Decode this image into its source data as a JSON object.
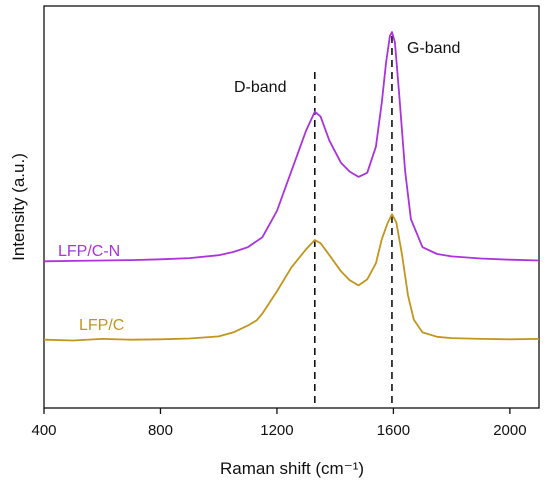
{
  "chart_data": {
    "type": "line",
    "title": "",
    "xlabel": "Raman shift (cm⁻¹)",
    "ylabel": "Intensity (a.u.)",
    "xlim": [
      400,
      2100
    ],
    "ylim": [
      0,
      1
    ],
    "xticks": [
      400,
      800,
      1200,
      1600,
      2000
    ],
    "yticks_shown": false,
    "grid": false,
    "legend": "none",
    "series": [
      {
        "name": "LFP/C-N",
        "color": "#aa33dd",
        "points": [
          [
            400,
            0.365
          ],
          [
            500,
            0.366
          ],
          [
            600,
            0.367
          ],
          [
            700,
            0.368
          ],
          [
            800,
            0.37
          ],
          [
            900,
            0.373
          ],
          [
            1000,
            0.38
          ],
          [
            1050,
            0.388
          ],
          [
            1100,
            0.4
          ],
          [
            1150,
            0.425
          ],
          [
            1200,
            0.49
          ],
          [
            1250,
            0.59
          ],
          [
            1300,
            0.69
          ],
          [
            1330,
            0.737
          ],
          [
            1350,
            0.725
          ],
          [
            1380,
            0.665
          ],
          [
            1420,
            0.61
          ],
          [
            1450,
            0.588
          ],
          [
            1480,
            0.575
          ],
          [
            1510,
            0.585
          ],
          [
            1540,
            0.65
          ],
          [
            1560,
            0.76
          ],
          [
            1575,
            0.86
          ],
          [
            1588,
            0.925
          ],
          [
            1595,
            0.935
          ],
          [
            1605,
            0.91
          ],
          [
            1620,
            0.78
          ],
          [
            1640,
            0.59
          ],
          [
            1660,
            0.47
          ],
          [
            1700,
            0.4
          ],
          [
            1750,
            0.383
          ],
          [
            1800,
            0.377
          ],
          [
            1900,
            0.372
          ],
          [
            2000,
            0.369
          ],
          [
            2100,
            0.367
          ]
        ]
      },
      {
        "name": "LFP/C",
        "color": "#c0961e",
        "points": [
          [
            400,
            0.17
          ],
          [
            500,
            0.168
          ],
          [
            600,
            0.172
          ],
          [
            700,
            0.17
          ],
          [
            800,
            0.171
          ],
          [
            900,
            0.173
          ],
          [
            1000,
            0.178
          ],
          [
            1050,
            0.188
          ],
          [
            1100,
            0.205
          ],
          [
            1130,
            0.218
          ],
          [
            1150,
            0.235
          ],
          [
            1200,
            0.29
          ],
          [
            1250,
            0.35
          ],
          [
            1300,
            0.395
          ],
          [
            1330,
            0.418
          ],
          [
            1350,
            0.41
          ],
          [
            1380,
            0.38
          ],
          [
            1420,
            0.34
          ],
          [
            1450,
            0.318
          ],
          [
            1480,
            0.305
          ],
          [
            1510,
            0.32
          ],
          [
            1540,
            0.36
          ],
          [
            1560,
            0.42
          ],
          [
            1580,
            0.46
          ],
          [
            1595,
            0.482
          ],
          [
            1610,
            0.462
          ],
          [
            1630,
            0.38
          ],
          [
            1650,
            0.28
          ],
          [
            1670,
            0.22
          ],
          [
            1700,
            0.188
          ],
          [
            1750,
            0.177
          ],
          [
            1800,
            0.174
          ],
          [
            1900,
            0.172
          ],
          [
            2000,
            0.171
          ],
          [
            2100,
            0.172
          ]
        ]
      }
    ],
    "reference_lines": [
      {
        "x": 1330,
        "label": "D-band"
      },
      {
        "x": 1595,
        "label": "G-band"
      }
    ]
  }
}
